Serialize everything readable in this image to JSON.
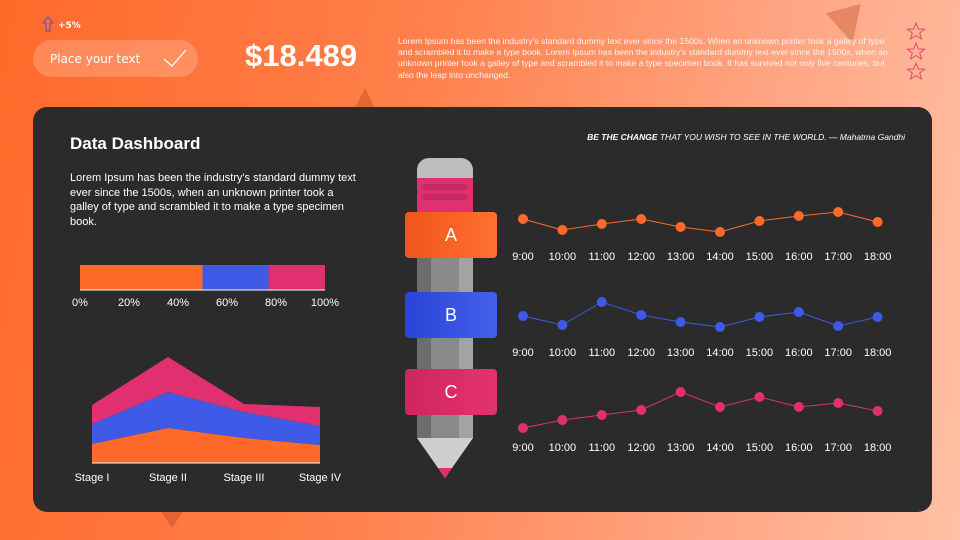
{
  "header": {
    "change": "+5%",
    "pill_text": "Place your text",
    "price": "$18.489",
    "paragraph": "Lorem Ipsum has been the industry's standard dummy text ever since the 1500s. When an unknown printer took a galley  of type and scrambled it to make a type book. Lorem Ipsum has been the industry's standard dummy text ever since the 1500s, when an unknown printer took a galley of type and scrambled it to make a type specimen book. It has survived not only five centuries, but also the leap into unchanged.",
    "rating_icons": [
      "star-icon",
      "star-icon",
      "star-icon"
    ]
  },
  "dashboard": {
    "title": "Data Dashboard",
    "description": "Lorem Ipsum has been the industry's standard dummy text ever since the 1500s, when an unknown printer took a galley of type and scrambled it to make a type specimen book.",
    "quote_bold": "BE THE CHANGE",
    "quote_rest": " THAT YOU WISH TO SEE IN THE WORLD. — Mahatma Gandhi",
    "ribbons": [
      "A",
      "B",
      "C"
    ]
  },
  "colors": {
    "orange": "#ff6a2b",
    "blue": "#3f5ae6",
    "pink": "#e0306f",
    "panel": "#2b2b2b"
  },
  "chart_data": [
    {
      "type": "bar",
      "orientation": "horizontal-stacked",
      "ticks": [
        "0%",
        "20%",
        "40%",
        "60%",
        "80%",
        "100%"
      ],
      "xlim": [
        0,
        100
      ],
      "values": [
        50,
        27,
        23
      ]
    },
    {
      "type": "area",
      "stacked": true,
      "categories": [
        "Stage I",
        "Stage II",
        "Stage III",
        "Stage IV"
      ],
      "series": [
        {
          "values": [
            19,
            35,
            25,
            18
          ]
        },
        {
          "values": [
            20,
            36,
            26,
            19
          ]
        },
        {
          "values": [
            19,
            35,
            8,
            19
          ]
        }
      ]
    },
    {
      "type": "line",
      "label": "A",
      "categories": [
        "9:00",
        "10:00",
        "11:00",
        "12:00",
        "13:00",
        "14:00",
        "15:00",
        "16:00",
        "17:00",
        "18:00"
      ],
      "values": [
        21,
        10,
        16,
        21,
        13,
        8,
        19,
        24,
        28,
        18
      ]
    },
    {
      "type": "line",
      "label": "B",
      "categories": [
        "9:00",
        "10:00",
        "11:00",
        "12:00",
        "13:00",
        "14:00",
        "15:00",
        "16:00",
        "17:00",
        "18:00"
      ],
      "values": [
        13,
        4,
        27,
        14,
        7,
        2,
        12,
        17,
        3,
        12
      ]
    },
    {
      "type": "line",
      "label": "C",
      "categories": [
        "9:00",
        "10:00",
        "11:00",
        "12:00",
        "13:00",
        "14:00",
        "15:00",
        "16:00",
        "17:00",
        "18:00"
      ],
      "values": [
        0,
        8,
        13,
        18,
        36,
        21,
        31,
        21,
        25,
        17
      ]
    }
  ]
}
